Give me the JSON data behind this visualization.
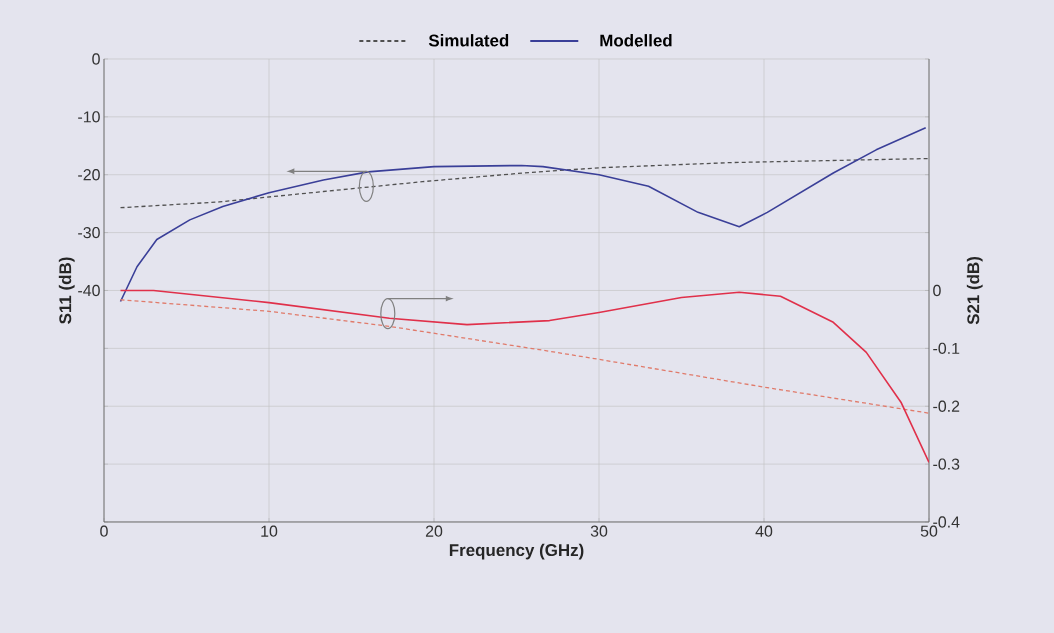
{
  "chart_data": {
    "type": "line",
    "xlabel": "Frequency (GHz)",
    "ylabel": "S11 (dB)",
    "y2label": "S21 (dB)",
    "xlim": [
      0,
      50
    ],
    "xticks": [
      0,
      10,
      20,
      30,
      40,
      50
    ],
    "ylim": [
      -80,
      0
    ],
    "yticks": [
      0,
      -10,
      -20,
      -30,
      -40,
      {
        "value": -50,
        "label": null
      },
      {
        "value": -60,
        "label": null
      },
      {
        "value": -70,
        "label": null
      },
      {
        "value": -80,
        "label": null
      }
    ],
    "y2lim": [
      -0.4,
      0.4
    ],
    "y2ticks": [
      {
        "value": 0.4,
        "label": null
      },
      {
        "value": 0.3,
        "label": null
      },
      {
        "value": 0.2,
        "label": null
      },
      {
        "value": 0.1,
        "label": null
      },
      0,
      -0.1,
      -0.2,
      -0.3,
      -0.4
    ],
    "grid": true,
    "legend": "top",
    "series": [
      {
        "name": "Simulated",
        "color": "#505050",
        "line_style": "dashed",
        "x": [
          1,
          7,
          13.3,
          19.3,
          25.4,
          30,
          38,
          50
        ],
        "values": [
          -25.7,
          -24.7,
          -22.9,
          -21.2,
          -19.7,
          -18.8,
          -17.9,
          -17.2
        ]
      },
      {
        "name": "Modelled",
        "color": "#3a3f98",
        "line_style": "solid",
        "x": [
          1,
          2,
          3.2,
          5.2,
          7.2,
          10,
          13.3,
          16,
          20,
          25.3,
          26.6,
          30,
          33,
          36,
          38.5,
          40.2,
          44.2,
          46.8,
          49.8
        ],
        "values": [
          -41.9,
          -35.9,
          -31.2,
          -27.8,
          -25.5,
          -23.1,
          -20.9,
          -19.5,
          -18.6,
          -18.4,
          -18.6,
          -20,
          -22,
          -26.5,
          -29,
          -26.5,
          -19.7,
          -15.7,
          -11.9
        ]
      },
      {
        "color": "#e07a6a",
        "line_style": "dashed",
        "axis": "y2",
        "x": [
          1,
          10,
          17.3,
          27,
          30,
          40,
          50
        ],
        "values": [
          -0.016,
          -0.036,
          -0.062,
          -0.105,
          -0.119,
          -0.167,
          -0.212
        ]
      },
      {
        "color": "#e0304a",
        "line_style": "solid",
        "axis": "y2",
        "x": [
          1,
          3,
          10,
          17.3,
          22,
          27,
          30,
          35,
          38.5,
          41,
          44.2,
          46.2,
          48.3,
          50
        ],
        "values": [
          0,
          0,
          -0.021,
          -0.048,
          -0.059,
          -0.052,
          -0.038,
          -0.012,
          -0.003,
          -0.01,
          -0.055,
          -0.107,
          -0.193,
          -0.297
        ]
      }
    ]
  }
}
